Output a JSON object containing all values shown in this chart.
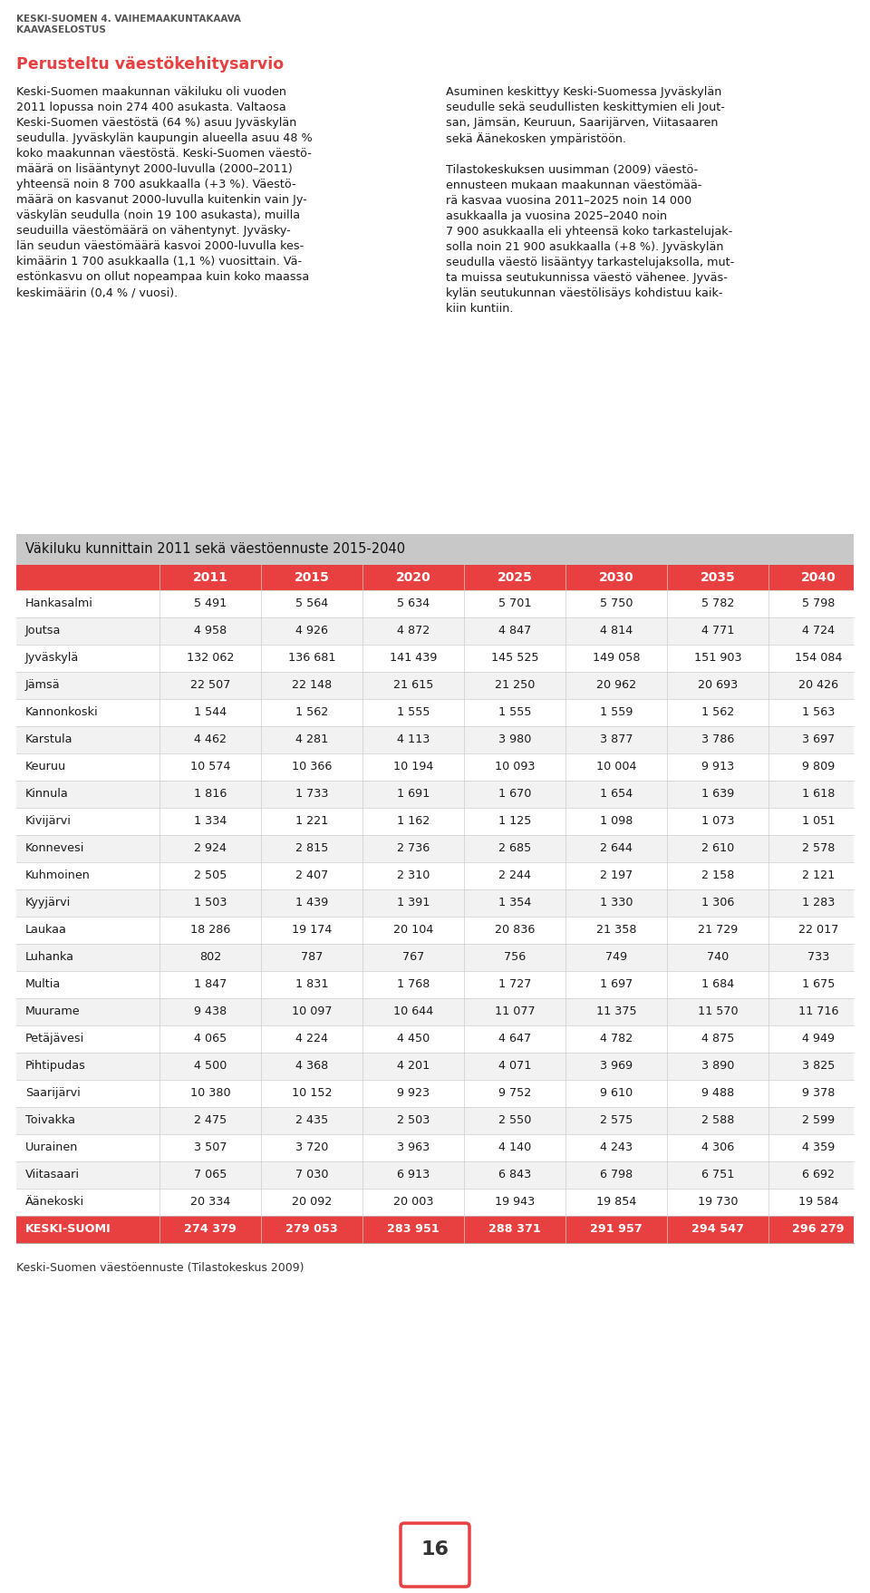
{
  "header_line1": "KESKI-SUOMEN 4. VAIHEMAAKUNTAKAAVA",
  "header_line2": "KAAVASELOSTUS",
  "section_title": "Perusteltu väestökehitysarvio",
  "left_text": [
    "Keski-Suomen maakunnan väkiluku oli vuoden",
    "2011 lopussa noin 274 400 asukasta. Valtaosa",
    "Keski-Suomen väestöstä (64 %) asuu Jyväskylän",
    "seudulla. Jyväskylän kaupungin alueella asuu 48 %",
    "koko maakunnan väestöstä. Keski-Suomen väestö-",
    "määrä on lisääntynyt 2000-luvulla (2000–2011)",
    "yhteensä noin 8 700 asukkaalla (+3 %). Väestö-",
    "määrä on kasvanut 2000-luvulla kuitenkin vain Jy-",
    "väskylän seudulla (noin 19 100 asukasta), muilla",
    "seuduilla väestömäärä on vähentynyt. Jyväsky-",
    "län seudun väestömäärä kasvoi 2000-luvulla kes-",
    "kimäärin 1 700 asukkaalla (1,1 %) vuosittain. Vä-",
    "estönkasvu on ollut nopeampaa kuin koko maassa",
    "keskimäärin (0,4 % / vuosi)."
  ],
  "right_text_para1": [
    "Asuminen keskittyy Keski-Suomessa Jyväskylän",
    "seudulle sekä seudullisten keskittymien eli Jout-",
    "san, Jämsän, Keuruun, Saarijärven, Viitasaaren",
    "sekä Äänekosken ympäristöön."
  ],
  "right_text_para2": [
    "Tilastokeskuksen uusimman (2009) väestö-",
    "ennusteen mukaan maakunnan väestömää-",
    "rä kasvaa vuosina 2011–2025 noin 14 000",
    "asukkaalla ja vuosina 2025–2040 noin",
    "7 900 asukkaalla eli yhteensä koko tarkastelujak-",
    "solla noin 21 900 asukkaalla (+8 %). Jyväskylän",
    "seudulla väestö lisääntyy tarkastelujaksolla, mut-",
    "ta muissa seutukunnissa väestö vähenee. Jyväs-",
    "kylän seutukunnan väestölisäys kohdistuu kaik-",
    "kiin kuntiin."
  ],
  "table_title": "Väkiluku kunnittain 2011 sekä väestöennuste 2015-2040",
  "table_header": [
    "",
    "2011",
    "2015",
    "2020",
    "2025",
    "2030",
    "2035",
    "2040"
  ],
  "table_data": [
    [
      "Hankasalmi",
      "5 491",
      "5 564",
      "5 634",
      "5 701",
      "5 750",
      "5 782",
      "5 798"
    ],
    [
      "Joutsa",
      "4 958",
      "4 926",
      "4 872",
      "4 847",
      "4 814",
      "4 771",
      "4 724"
    ],
    [
      "Jyväskylä",
      "132 062",
      "136 681",
      "141 439",
      "145 525",
      "149 058",
      "151 903",
      "154 084"
    ],
    [
      "Jämsä",
      "22 507",
      "22 148",
      "21 615",
      "21 250",
      "20 962",
      "20 693",
      "20 426"
    ],
    [
      "Kannonkoski",
      "1 544",
      "1 562",
      "1 555",
      "1 555",
      "1 559",
      "1 562",
      "1 563"
    ],
    [
      "Karstula",
      "4 462",
      "4 281",
      "4 113",
      "3 980",
      "3 877",
      "3 786",
      "3 697"
    ],
    [
      "Keuruu",
      "10 574",
      "10 366",
      "10 194",
      "10 093",
      "10 004",
      "9 913",
      "9 809"
    ],
    [
      "Kinnula",
      "1 816",
      "1 733",
      "1 691",
      "1 670",
      "1 654",
      "1 639",
      "1 618"
    ],
    [
      "Kivijärvi",
      "1 334",
      "1 221",
      "1 162",
      "1 125",
      "1 098",
      "1 073",
      "1 051"
    ],
    [
      "Konnevesi",
      "2 924",
      "2 815",
      "2 736",
      "2 685",
      "2 644",
      "2 610",
      "2 578"
    ],
    [
      "Kuhmoinen",
      "2 505",
      "2 407",
      "2 310",
      "2 244",
      "2 197",
      "2 158",
      "2 121"
    ],
    [
      "Kyyjärvi",
      "1 503",
      "1 439",
      "1 391",
      "1 354",
      "1 330",
      "1 306",
      "1 283"
    ],
    [
      "Laukaa",
      "18 286",
      "19 174",
      "20 104",
      "20 836",
      "21 358",
      "21 729",
      "22 017"
    ],
    [
      "Luhanka",
      "802",
      "787",
      "767",
      "756",
      "749",
      "740",
      "733"
    ],
    [
      "Multia",
      "1 847",
      "1 831",
      "1 768",
      "1 727",
      "1 697",
      "1 684",
      "1 675"
    ],
    [
      "Muurame",
      "9 438",
      "10 097",
      "10 644",
      "11 077",
      "11 375",
      "11 570",
      "11 716"
    ],
    [
      "Petäjävesi",
      "4 065",
      "4 224",
      "4 450",
      "4 647",
      "4 782",
      "4 875",
      "4 949"
    ],
    [
      "Pihtipudas",
      "4 500",
      "4 368",
      "4 201",
      "4 071",
      "3 969",
      "3 890",
      "3 825"
    ],
    [
      "Saarijärvi",
      "10 380",
      "10 152",
      "9 923",
      "9 752",
      "9 610",
      "9 488",
      "9 378"
    ],
    [
      "Toivakka",
      "2 475",
      "2 435",
      "2 503",
      "2 550",
      "2 575",
      "2 588",
      "2 599"
    ],
    [
      "Uurainen",
      "3 507",
      "3 720",
      "3 963",
      "4 140",
      "4 243",
      "4 306",
      "4 359"
    ],
    [
      "Viitasaari",
      "7 065",
      "7 030",
      "6 913",
      "6 843",
      "6 798",
      "6 751",
      "6 692"
    ],
    [
      "Äänekoski",
      "20 334",
      "20 092",
      "20 003",
      "19 943",
      "19 854",
      "19 730",
      "19 584"
    ],
    [
      "KESKI-SUOMI",
      "274 379",
      "279 053",
      "283 951",
      "288 371",
      "291 957",
      "294 547",
      "296 279"
    ]
  ],
  "footer_text": "Keski-Suomen väestöennuste (Tilastokeskus 2009)",
  "page_number": "16",
  "table_header_color": "#e84040",
  "table_title_bg": "#c8c8c8",
  "total_row_bg": "#e84040",
  "section_title_color": "#e84040",
  "page_box_color": "#e84040"
}
